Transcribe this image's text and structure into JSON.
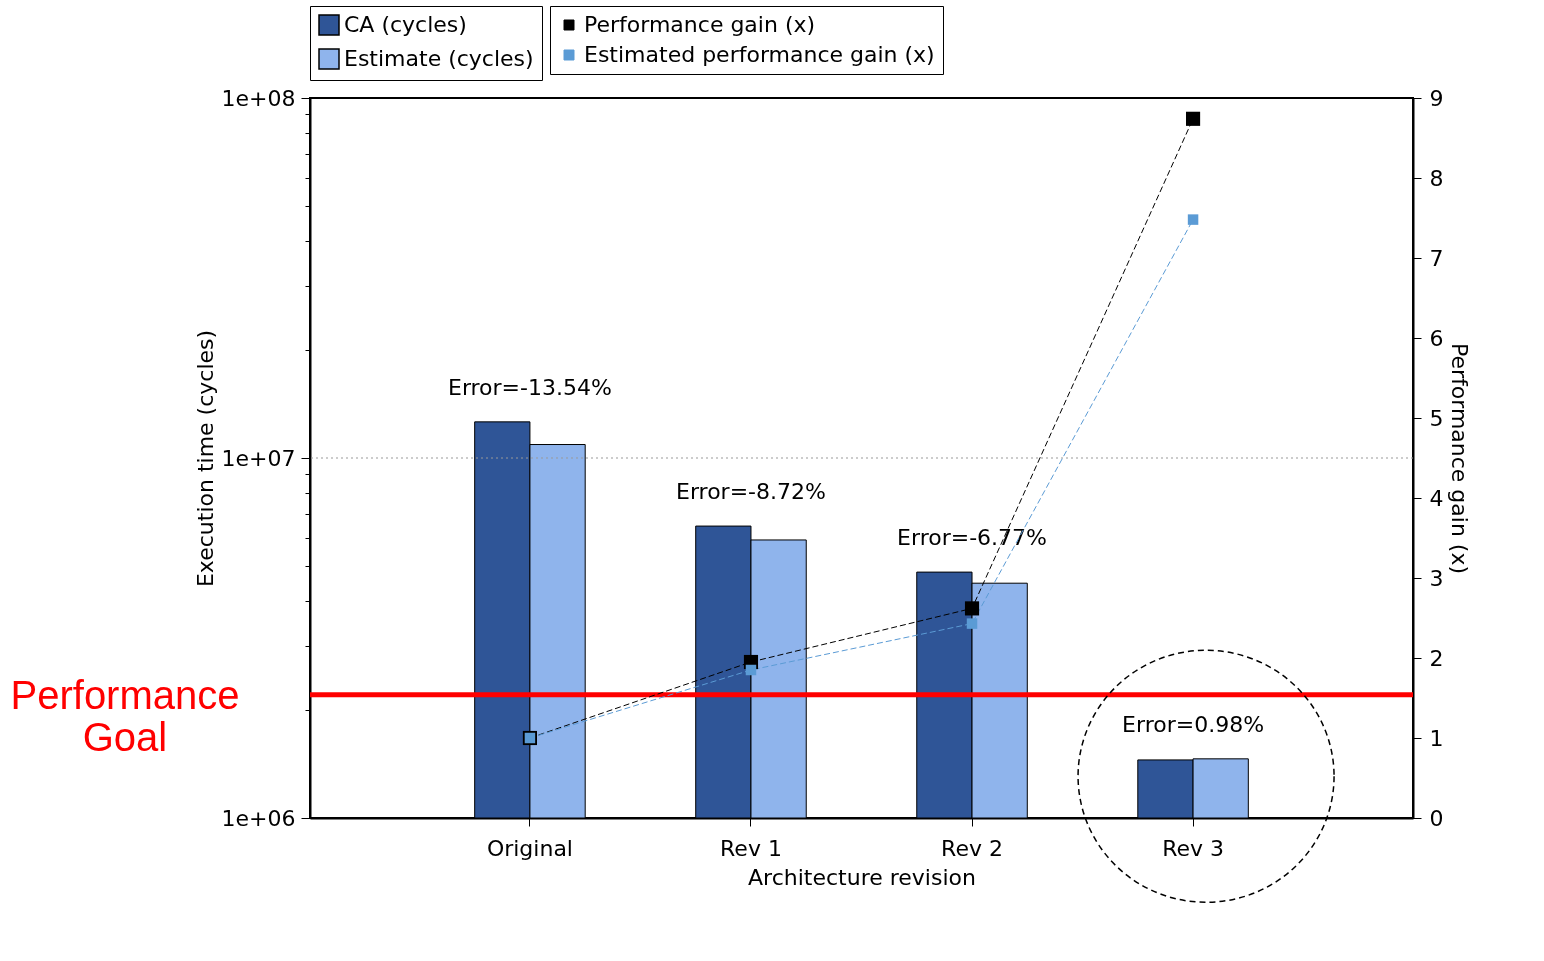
{
  "chart_data": {
    "type": "bar",
    "xlabel": "Architecture revision",
    "ylabel": "Execution time (cycles)",
    "y2label": "Performance gain (x)",
    "categories": [
      "Original",
      "Rev 1",
      "Rev 2",
      "Rev 3"
    ],
    "series": [
      {
        "name": "CA (cycles)",
        "type": "bar",
        "color": "#2f5597",
        "values": [
          12600000,
          6470000,
          4820000,
          1450000
        ]
      },
      {
        "name": "Estimate (cycles)",
        "type": "bar",
        "color": "#8fb4ec",
        "values": [
          10900000,
          5920000,
          4490000,
          1460000
        ]
      },
      {
        "name": "Performance gain (x)",
        "type": "line",
        "axis": "y2",
        "color": "#000000",
        "marker": "square",
        "line_style": "dashed",
        "values": [
          1,
          1.95,
          2.62,
          8.74
        ]
      },
      {
        "name": "Estimated performance gain (x)",
        "type": "line",
        "axis": "y2",
        "color": "#5b9bd5",
        "marker": "square",
        "line_style": "dashed",
        "values": [
          1,
          1.85,
          2.43,
          7.48
        ]
      }
    ],
    "log": "y",
    "ylim": [
      1000000,
      100000000
    ],
    "yticks": [
      {
        "value": 1000000,
        "label": "1e+06"
      },
      {
        "value": 2000000,
        "label": null
      },
      {
        "value": 3000000,
        "label": null
      },
      {
        "value": 4000000,
        "label": null
      },
      {
        "value": 5000000,
        "label": null
      },
      {
        "value": 6000000,
        "label": null
      },
      {
        "value": 7000000,
        "label": null
      },
      {
        "value": 8000000,
        "label": null
      },
      {
        "value": 9000000,
        "label": null
      },
      {
        "value": 10000000,
        "label": "1e+07"
      },
      {
        "value": 20000000,
        "label": null
      },
      {
        "value": 30000000,
        "label": null
      },
      {
        "value": 40000000,
        "label": null
      },
      {
        "value": 50000000,
        "label": null
      },
      {
        "value": 60000000,
        "label": null
      },
      {
        "value": 70000000,
        "label": null
      },
      {
        "value": 80000000,
        "label": null
      },
      {
        "value": 90000000,
        "label": null
      },
      {
        "value": 100000000,
        "label": "1e+08"
      }
    ],
    "y2lim": [
      0,
      9
    ],
    "y2ticks": [
      0,
      1,
      2,
      3,
      4,
      5,
      6,
      7,
      8,
      9
    ],
    "legend": "top",
    "ref_lines": [
      {
        "axis": "y",
        "value": 2200000,
        "label": "Performance Goal",
        "color": "#ff0000",
        "line_style": "solid"
      },
      {
        "axis": "y",
        "value": 10000000,
        "color": "#999999",
        "line_style": "dotted"
      }
    ],
    "annotations": [
      "Error=-13.54%",
      "Error=-8.72%",
      "Error=-6.77%",
      "Error=0.98%"
    ]
  }
}
